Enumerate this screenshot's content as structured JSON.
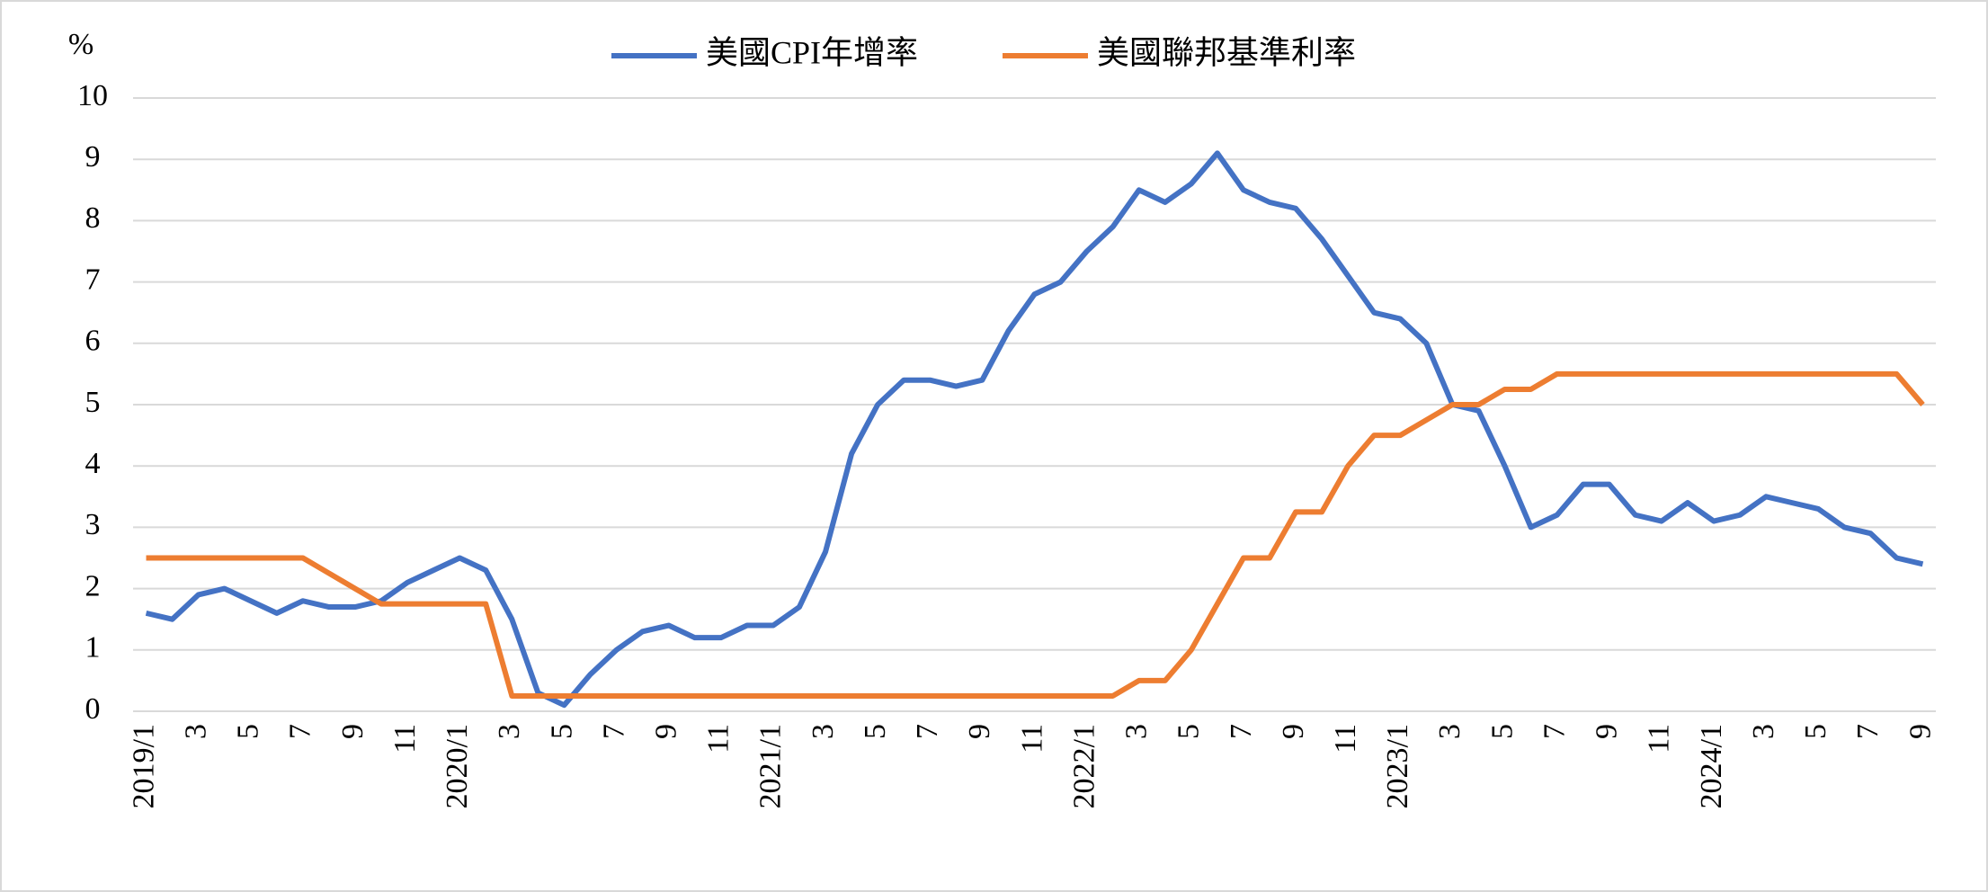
{
  "chart_data": {
    "type": "line",
    "y_unit": "%",
    "categories": [
      "2019/1",
      null,
      "3",
      null,
      "5",
      null,
      "7",
      null,
      "9",
      null,
      "11",
      null,
      "2020/1",
      null,
      "3",
      null,
      "5",
      null,
      "7",
      null,
      "9",
      null,
      "11",
      null,
      "2021/1",
      null,
      "3",
      null,
      "5",
      null,
      "7",
      null,
      "9",
      null,
      "11",
      null,
      "2022/1",
      null,
      "3",
      null,
      "5",
      null,
      "7",
      null,
      "9",
      null,
      "11",
      null,
      "2023/1",
      null,
      "3",
      null,
      "5",
      null,
      "7",
      null,
      "9",
      null,
      "11",
      null,
      "2024/1",
      null,
      "3",
      null,
      "5",
      null,
      "7",
      null,
      "9"
    ],
    "series": [
      {
        "name": "美國CPI年增率",
        "color": "#4472c4",
        "values": [
          1.6,
          1.5,
          1.9,
          2.0,
          1.8,
          1.6,
          1.8,
          1.7,
          1.7,
          1.8,
          2.1,
          2.3,
          2.5,
          2.3,
          1.5,
          0.3,
          0.1,
          0.6,
          1.0,
          1.3,
          1.4,
          1.2,
          1.2,
          1.4,
          1.4,
          1.7,
          2.6,
          4.2,
          5.0,
          5.4,
          5.4,
          5.3,
          5.4,
          6.2,
          6.8,
          7.0,
          7.5,
          7.9,
          8.5,
          8.3,
          8.6,
          9.1,
          8.5,
          8.3,
          8.2,
          7.7,
          7.1,
          6.5,
          6.4,
          6.0,
          5.0,
          4.9,
          4.0,
          3.0,
          3.2,
          3.7,
          3.7,
          3.2,
          3.1,
          3.4,
          3.1,
          3.2,
          3.5,
          3.4,
          3.3,
          3.0,
          2.9,
          2.5,
          2.4
        ]
      },
      {
        "name": "美國聯邦基準利率",
        "color": "#ed7d31",
        "values": [
          2.5,
          2.5,
          2.5,
          2.5,
          2.5,
          2.5,
          2.5,
          2.25,
          2.0,
          1.75,
          1.75,
          1.75,
          1.75,
          1.75,
          0.25,
          0.25,
          0.25,
          0.25,
          0.25,
          0.25,
          0.25,
          0.25,
          0.25,
          0.25,
          0.25,
          0.25,
          0.25,
          0.25,
          0.25,
          0.25,
          0.25,
          0.25,
          0.25,
          0.25,
          0.25,
          0.25,
          0.25,
          0.25,
          0.5,
          0.5,
          1.0,
          1.75,
          2.5,
          2.5,
          3.25,
          3.25,
          4.0,
          4.5,
          4.5,
          4.75,
          5.0,
          5.0,
          5.25,
          5.25,
          5.5,
          5.5,
          5.5,
          5.5,
          5.5,
          5.5,
          5.5,
          5.5,
          5.5,
          5.5,
          5.5,
          5.5,
          5.5,
          5.5,
          5.0
        ]
      }
    ],
    "ylim": [
      0,
      10
    ],
    "yticks": [
      0,
      1,
      2,
      3,
      4,
      5,
      6,
      7,
      8,
      9,
      10
    ],
    "grid": true,
    "legend": "top"
  }
}
